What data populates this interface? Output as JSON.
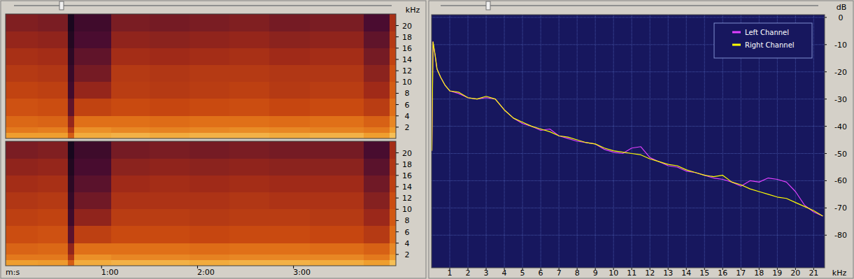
{
  "chart_data": [
    {
      "type": "heatmap",
      "y_label": "kHz",
      "x_edges": [
        0,
        20,
        39,
        43,
        66,
        90,
        115,
        140,
        165,
        190,
        224,
        240,
        244
      ],
      "y_edges": [
        0,
        1,
        2,
        4,
        7,
        10,
        13,
        16,
        19,
        22.05
      ],
      "cells": [
        [
          -30,
          -30,
          -45,
          -28,
          -27,
          -28,
          -27,
          -27,
          -28,
          -27,
          -30,
          -25
        ],
        [
          -38,
          -37,
          -55,
          -33,
          -35,
          -36,
          -35,
          -34,
          -35,
          -36,
          -38,
          -30
        ],
        [
          -42,
          -43,
          -62,
          -40,
          -40,
          -41,
          -40,
          -40,
          -41,
          -40,
          -44,
          -35
        ],
        [
          -48,
          -49,
          -72,
          -52,
          -50,
          -51,
          -50,
          -49,
          -51,
          -50,
          -54,
          -40
        ],
        [
          -52,
          -53,
          -80,
          -62,
          -54,
          -55,
          -54,
          -53,
          -55,
          -54,
          -60,
          -45
        ],
        [
          -55,
          -56,
          -84,
          -68,
          -55,
          -56,
          -55,
          -55,
          -56,
          -56,
          -64,
          -48
        ],
        [
          -58,
          -59,
          -88,
          -72,
          -59,
          -60,
          -59,
          -58,
          -60,
          -59,
          -68,
          -52
        ],
        [
          -62,
          -63,
          -92,
          -76,
          -63,
          -64,
          -63,
          -62,
          -64,
          -63,
          -72,
          -55
        ],
        [
          -66,
          -67,
          -96,
          -80,
          -67,
          -68,
          -67,
          -66,
          -68,
          -67,
          -76,
          -58
        ]
      ],
      "color_range": [
        -100,
        -20
      ],
      "xlim": [
        0,
        244
      ],
      "ylim": [
        0,
        22.05
      ],
      "yticks": [
        2,
        4,
        6,
        8,
        10,
        12,
        14,
        16,
        18,
        20
      ],
      "tick_labels": "y"
    },
    {
      "type": "heatmap",
      "x_label": "m:s",
      "x_edges": [
        0,
        20,
        39,
        43,
        66,
        90,
        115,
        140,
        165,
        190,
        224,
        240,
        244
      ],
      "y_edges": [
        0,
        1,
        2,
        4,
        7,
        10,
        13,
        16,
        19,
        22.05
      ],
      "cells": [
        [
          -30,
          -31,
          -45,
          -28,
          -27,
          -27,
          -28,
          -27,
          -27,
          -28,
          -30,
          -25
        ],
        [
          -38,
          -38,
          -56,
          -33,
          -35,
          -35,
          -36,
          -35,
          -35,
          -35,
          -38,
          -30
        ],
        [
          -43,
          -42,
          -63,
          -40,
          -40,
          -40,
          -41,
          -40,
          -40,
          -41,
          -44,
          -35
        ],
        [
          -49,
          -48,
          -73,
          -53,
          -50,
          -50,
          -51,
          -50,
          -50,
          -51,
          -55,
          -41
        ],
        [
          -53,
          -52,
          -81,
          -63,
          -54,
          -54,
          -55,
          -54,
          -54,
          -55,
          -61,
          -46
        ],
        [
          -56,
          -55,
          -85,
          -69,
          -57,
          -57,
          -57,
          -56,
          -57,
          -57,
          -65,
          -49
        ],
        [
          -59,
          -58,
          -89,
          -73,
          -60,
          -59,
          -60,
          -59,
          -60,
          -60,
          -69,
          -53
        ],
        [
          -63,
          -62,
          -93,
          -77,
          -64,
          -63,
          -64,
          -63,
          -64,
          -64,
          -73,
          -56
        ],
        [
          -67,
          -66,
          -97,
          -81,
          -68,
          -67,
          -68,
          -67,
          -68,
          -68,
          -77,
          -59
        ]
      ],
      "color_range": [
        -100,
        -20
      ],
      "xlim": [
        0,
        244
      ],
      "ylim": [
        0,
        22.05
      ],
      "xticks": [
        {
          "value": 60,
          "label": "1:00"
        },
        {
          "value": 120,
          "label": "2:00"
        },
        {
          "value": 180,
          "label": "3:00"
        }
      ],
      "yticks": [
        2,
        4,
        6,
        8,
        10,
        12,
        14,
        16,
        18,
        20
      ]
    },
    {
      "type": "line",
      "x_label": "kHz",
      "y_label": "dB",
      "x": [
        0.02,
        0.08,
        0.2,
        0.3,
        0.5,
        0.75,
        1,
        1.5,
        2,
        2.5,
        3,
        3.5,
        4,
        4.5,
        5,
        5.5,
        6,
        6.5,
        7,
        7.5,
        8,
        8.5,
        9,
        9.5,
        10,
        10.5,
        11,
        11.5,
        12,
        12.5,
        13,
        13.5,
        14,
        14.5,
        15,
        15.5,
        16,
        16.5,
        17,
        17.5,
        18,
        18.5,
        19,
        19.5,
        20,
        20.5,
        21,
        21.5
      ],
      "series": [
        {
          "name": "Left Channel",
          "color": "#e040ff",
          "values": [
            -49,
            -9,
            -14,
            -19,
            -22,
            -25,
            -27,
            -28,
            -29.5,
            -30,
            -29.5,
            -30,
            -34,
            -37,
            -39,
            -40,
            -41.5,
            -41,
            -43.5,
            -44.5,
            -45.5,
            -46,
            -46.5,
            -48.5,
            -49.5,
            -50,
            -48,
            -47.5,
            -51.5,
            -53,
            -54.5,
            -55,
            -56.5,
            -57,
            -58,
            -59,
            -59.5,
            -60.5,
            -62,
            -60,
            -60.5,
            -59,
            -59.5,
            -60.5,
            -64,
            -69,
            -71.5,
            -73
          ]
        },
        {
          "name": "Right Channel",
          "color": "#ffff00",
          "values": [
            -49,
            -9,
            -14,
            -19,
            -22,
            -25,
            -27,
            -27.5,
            -29.5,
            -30,
            -29,
            -30,
            -34,
            -37,
            -38.5,
            -40,
            -41,
            -42,
            -43.5,
            -44,
            -45,
            -46,
            -46.5,
            -48,
            -49,
            -49.5,
            -50,
            -50.5,
            -52,
            -53,
            -54,
            -54.5,
            -56,
            -57,
            -58,
            -58.5,
            -58,
            -60.5,
            -61.5,
            -63,
            -64,
            -65,
            -66,
            -66.5,
            -68,
            -69.5,
            -71,
            -73
          ]
        }
      ],
      "xlim": [
        0,
        21.6
      ],
      "ylim": [
        -92,
        1
      ],
      "xticks": [
        1,
        2,
        3,
        4,
        5,
        6,
        7,
        8,
        9,
        10,
        11,
        12,
        13,
        14,
        15,
        16,
        17,
        18,
        19,
        20,
        21
      ],
      "yticks": [
        0,
        -10,
        -20,
        -30,
        -40,
        -50,
        -60,
        -70,
        -80
      ],
      "grid": true,
      "legend": "upper right"
    }
  ]
}
